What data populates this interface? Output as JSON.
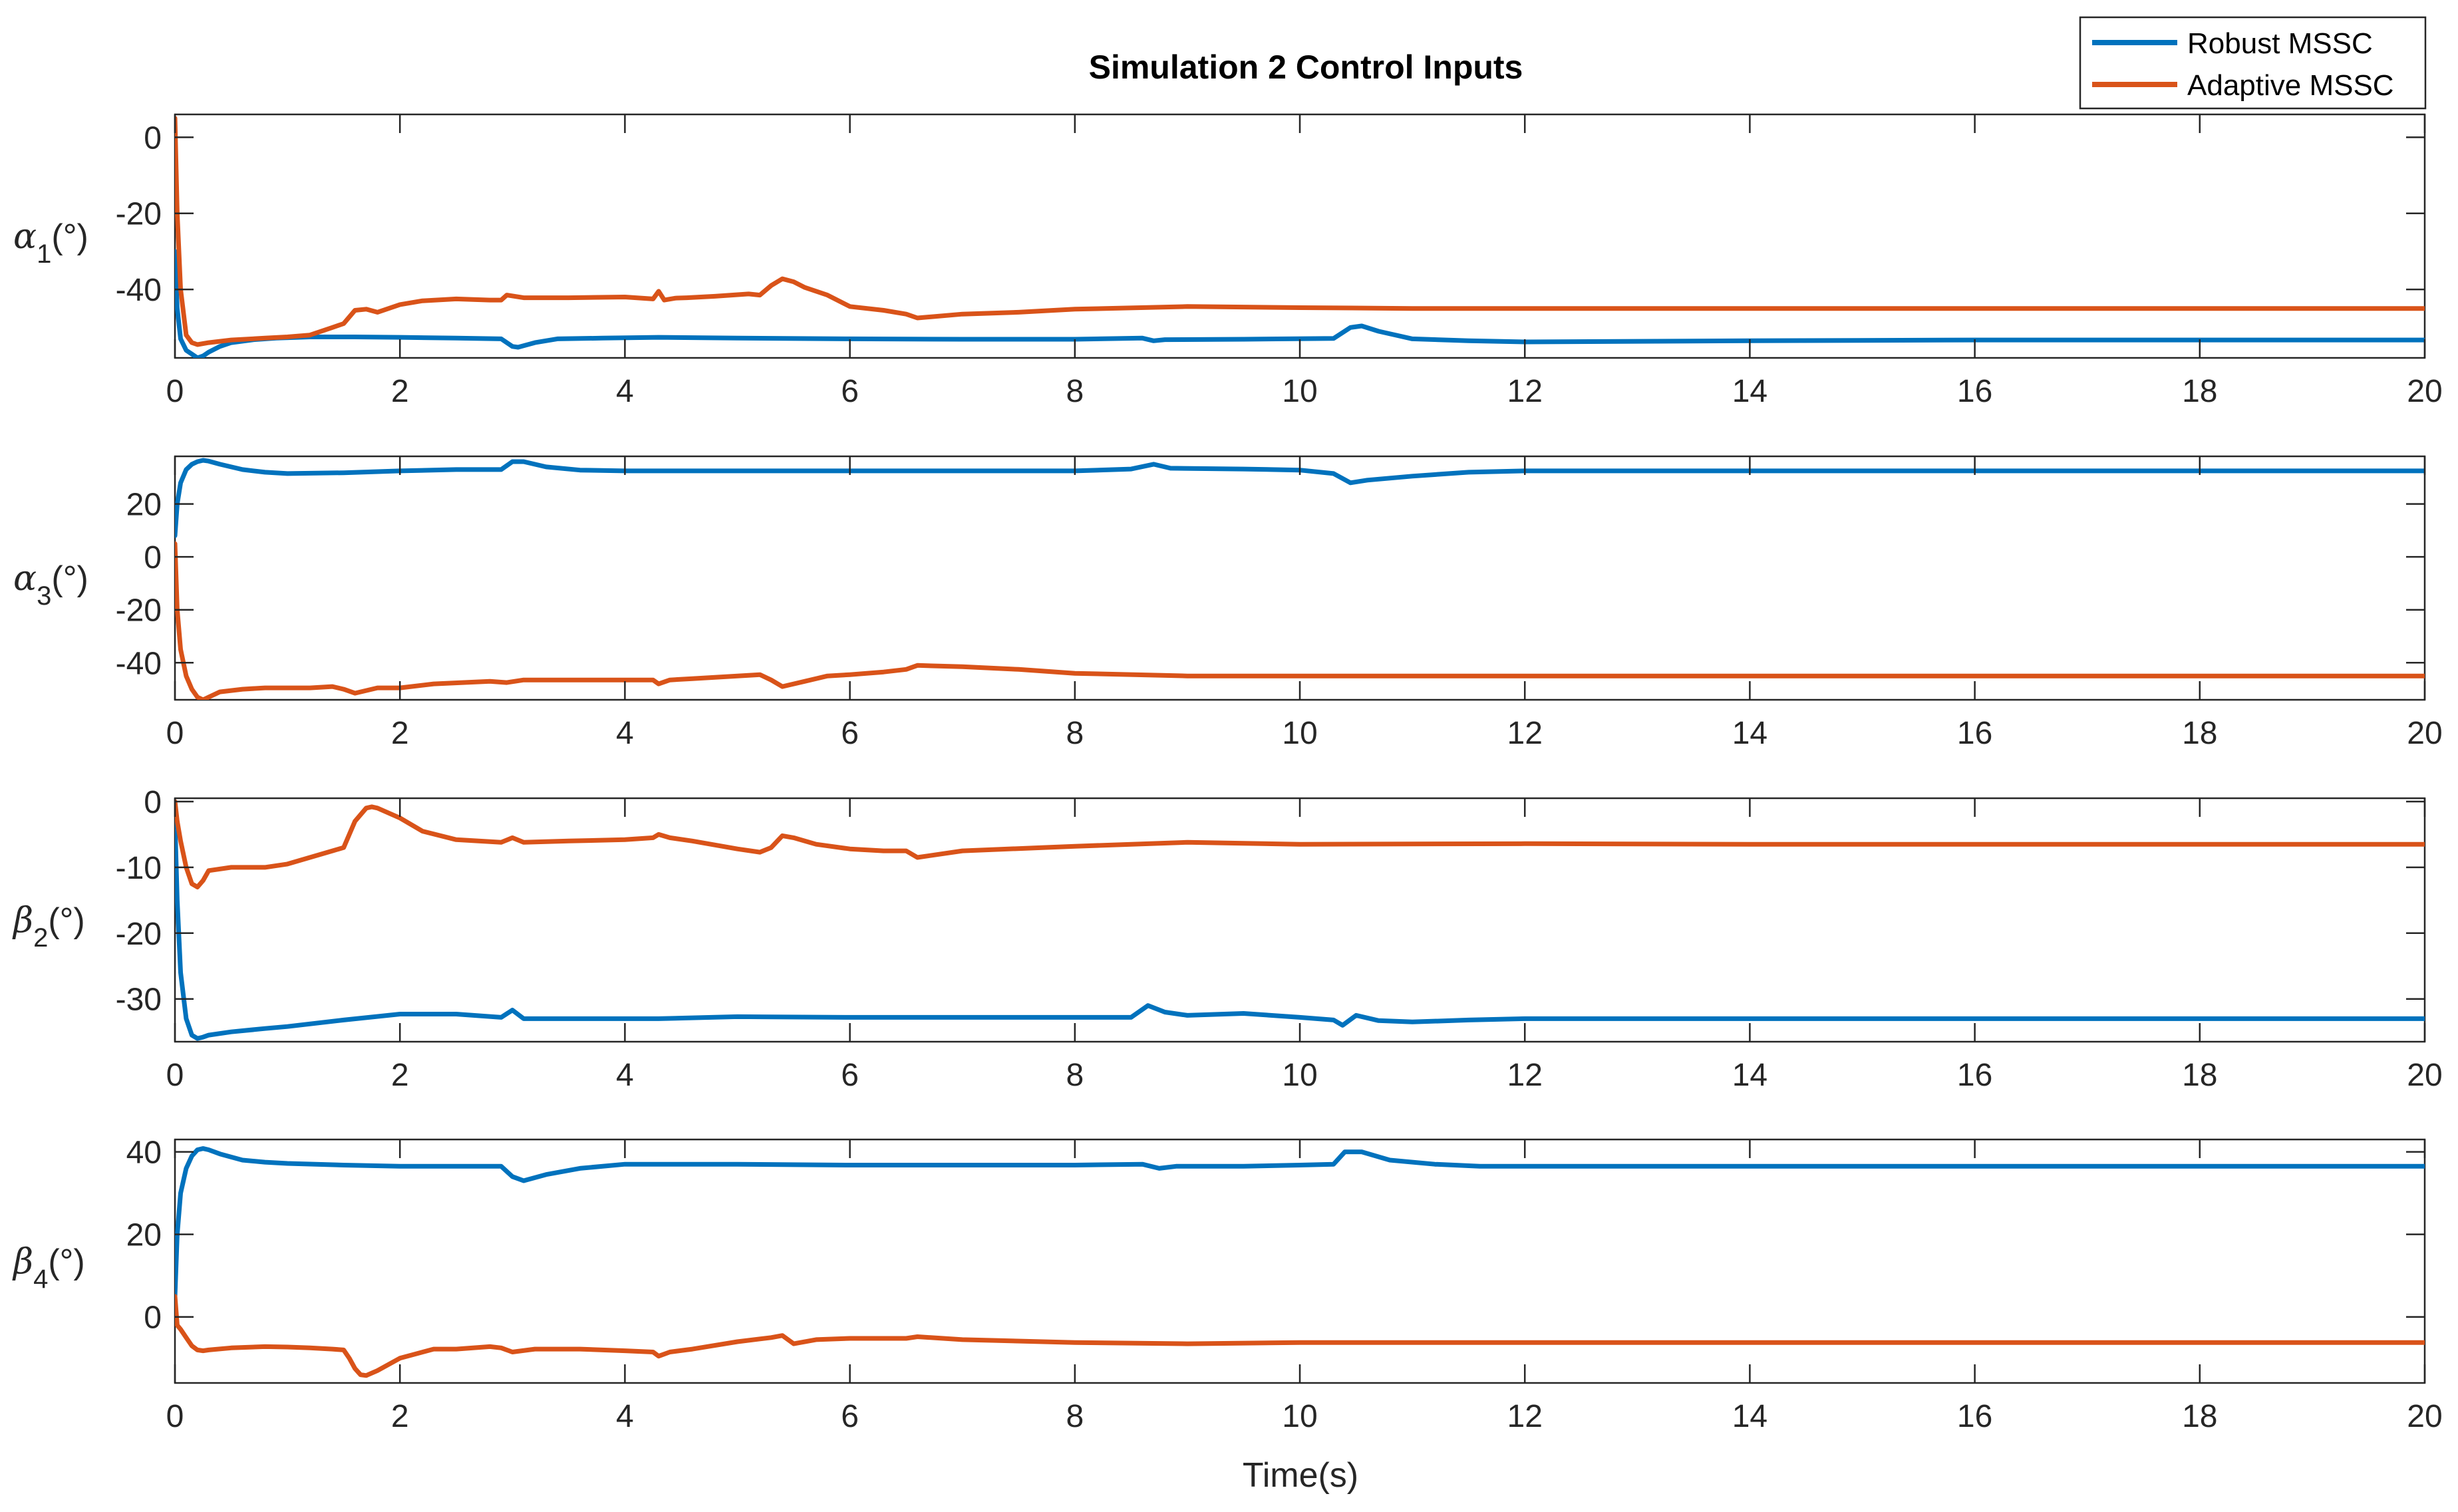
{
  "figure": {
    "title": "Simulation 2 Control Inputs",
    "xlabel": "Time(s)"
  },
  "legend": {
    "entries": [
      {
        "name": "Robust MSSC",
        "color": "#0072BD"
      },
      {
        "name": "Adaptive MSSC",
        "color": "#D95319"
      }
    ],
    "placement": "top-right"
  },
  "chart_data": [
    {
      "type": "line",
      "ylabel_symbol": "α",
      "ylabel_sub": "1",
      "ylabel_unit": "(°)",
      "xlim": [
        0,
        20
      ],
      "ylim": [
        -58,
        6
      ],
      "xticks": [
        0,
        2,
        4,
        6,
        8,
        10,
        12,
        14,
        16,
        18,
        20
      ],
      "yticks": [
        -40,
        -20,
        0
      ],
      "series": [
        {
          "name": "Robust MSSC",
          "x": [
            0,
            0.02,
            0.05,
            0.1,
            0.15,
            0.2,
            0.25,
            0.3,
            0.4,
            0.5,
            0.7,
            0.9,
            1.2,
            1.6,
            2.0,
            2.5,
            2.9,
            3.0,
            3.05,
            3.2,
            3.4,
            3.8,
            4.3,
            5.0,
            6.0,
            7.0,
            8.0,
            8.6,
            8.7,
            8.8,
            9.5,
            10.3,
            10.45,
            10.55,
            10.7,
            11.0,
            11.5,
            12.0,
            14.0,
            16.0,
            18.0,
            20.0
          ],
          "y": [
            -30,
            -45,
            -53,
            -56,
            -57,
            -58,
            -57.5,
            -56.5,
            -55,
            -54,
            -53.2,
            -52.8,
            -52.5,
            -52.5,
            -52.6,
            -52.8,
            -53,
            -55,
            -55.2,
            -54,
            -53,
            -52.8,
            -52.6,
            -52.8,
            -53,
            -53.1,
            -53.1,
            -52.8,
            -53.5,
            -53.2,
            -53.1,
            -52.9,
            -50,
            -49.6,
            -51,
            -53,
            -53.5,
            -53.8,
            -53.5,
            -53.3,
            -53.3,
            -53.3
          ]
        },
        {
          "name": "Adaptive MSSC",
          "x": [
            0,
            0.02,
            0.05,
            0.1,
            0.15,
            0.2,
            0.3,
            0.5,
            0.8,
            1.0,
            1.2,
            1.4,
            1.5,
            1.6,
            1.7,
            1.8,
            2.0,
            2.2,
            2.5,
            2.8,
            2.9,
            2.95,
            3.1,
            3.5,
            4.0,
            4.25,
            4.3,
            4.35,
            4.45,
            4.55,
            4.8,
            5.1,
            5.2,
            5.3,
            5.4,
            5.5,
            5.6,
            5.8,
            6.0,
            6.3,
            6.5,
            6.6,
            7.0,
            7.5,
            8.0,
            9.0,
            10.0,
            11.0,
            12.0,
            14.0,
            16.0,
            18.0,
            20.0
          ],
          "y": [
            5,
            -20,
            -40,
            -52,
            -54,
            -54.5,
            -54,
            -53.3,
            -52.8,
            -52.5,
            -52,
            -50,
            -49,
            -45.5,
            -45.2,
            -46,
            -44,
            -43,
            -42.5,
            -42.8,
            -42.8,
            -41.5,
            -42.2,
            -42.2,
            -42,
            -42.5,
            -40.5,
            -42.8,
            -42.3,
            -42.2,
            -41.8,
            -41.2,
            -41.5,
            -39,
            -37.2,
            -38,
            -39.5,
            -41.5,
            -44.5,
            -45.5,
            -46.5,
            -47.5,
            -46.5,
            -46,
            -45.2,
            -44.5,
            -44.8,
            -45,
            -45,
            -45,
            -45,
            -45,
            -45
          ]
        }
      ]
    },
    {
      "type": "line",
      "ylabel_symbol": "α",
      "ylabel_sub": "3",
      "ylabel_unit": "(°)",
      "xlim": [
        0,
        20
      ],
      "ylim": [
        -54,
        38
      ],
      "xticks": [
        0,
        2,
        4,
        6,
        8,
        10,
        12,
        14,
        16,
        18,
        20
      ],
      "yticks": [
        -40,
        -20,
        0,
        20
      ],
      "series": [
        {
          "name": "Robust MSSC",
          "x": [
            0,
            0.02,
            0.05,
            0.1,
            0.15,
            0.2,
            0.25,
            0.3,
            0.4,
            0.6,
            0.8,
            1.0,
            1.5,
            2.0,
            2.5,
            2.9,
            3.0,
            3.1,
            3.3,
            3.6,
            4.0,
            5.0,
            6.0,
            7.0,
            8.0,
            8.5,
            8.7,
            8.85,
            9.5,
            10.0,
            10.3,
            10.45,
            10.6,
            11.0,
            11.5,
            12.0,
            14.0,
            16.0,
            18.0,
            20.0
          ],
          "y": [
            8,
            20,
            28,
            33,
            35,
            36,
            36.5,
            36.2,
            35,
            33,
            32,
            31.5,
            31.8,
            32.5,
            33,
            33,
            36,
            36,
            34,
            32.8,
            32.5,
            32.5,
            32.5,
            32.5,
            32.5,
            33.2,
            35,
            33.5,
            33.2,
            32.8,
            31.5,
            28,
            29,
            30.5,
            32,
            32.5,
            32.5,
            32.5,
            32.5,
            32.5
          ]
        },
        {
          "name": "Adaptive MSSC",
          "x": [
            0,
            0.02,
            0.05,
            0.1,
            0.15,
            0.2,
            0.25,
            0.3,
            0.4,
            0.6,
            0.8,
            1.0,
            1.2,
            1.4,
            1.5,
            1.6,
            1.7,
            1.8,
            2.0,
            2.3,
            2.8,
            2.95,
            3.1,
            3.5,
            4.0,
            4.25,
            4.3,
            4.4,
            4.6,
            5.0,
            5.2,
            5.3,
            5.4,
            5.6,
            5.8,
            6.0,
            6.3,
            6.5,
            6.6,
            7.0,
            7.5,
            8.0,
            9.0,
            10.0,
            12.0,
            14.0,
            16.0,
            18.0,
            20.0
          ],
          "y": [
            5,
            -20,
            -35,
            -45,
            -50,
            -53,
            -54,
            -53,
            -51,
            -50,
            -49.5,
            -49.5,
            -49.5,
            -49,
            -50,
            -51.5,
            -50.5,
            -49.5,
            -49.5,
            -48,
            -47,
            -47.5,
            -46.5,
            -46.5,
            -46.5,
            -46.5,
            -48,
            -46.5,
            -46,
            -45,
            -44.5,
            -46.5,
            -49,
            -47,
            -45,
            -44.5,
            -43.5,
            -42.5,
            -41,
            -41.5,
            -42.5,
            -44,
            -45,
            -45,
            -45,
            -45,
            -45,
            -45,
            -45
          ]
        }
      ]
    },
    {
      "type": "line",
      "ylabel_symbol": "β",
      "ylabel_sub": "2",
      "ylabel_unit": "(°)",
      "xlim": [
        0,
        20
      ],
      "ylim": [
        -36.5,
        0.5
      ],
      "xticks": [
        0,
        2,
        4,
        6,
        8,
        10,
        12,
        14,
        16,
        18,
        20
      ],
      "yticks": [
        -30,
        -20,
        -10,
        0
      ],
      "series": [
        {
          "name": "Robust MSSC",
          "x": [
            0,
            0.02,
            0.05,
            0.1,
            0.15,
            0.2,
            0.25,
            0.3,
            0.5,
            0.8,
            1.0,
            1.5,
            2.0,
            2.5,
            2.9,
            3.0,
            3.1,
            3.3,
            3.8,
            4.3,
            5.0,
            6.0,
            7.0,
            8.0,
            8.5,
            8.65,
            8.8,
            9.0,
            9.5,
            10.0,
            10.3,
            10.38,
            10.5,
            10.7,
            11.0,
            11.5,
            12.0,
            14.0,
            16.0,
            18.0,
            20.0
          ],
          "y": [
            -3,
            -15,
            -26,
            -33,
            -35.5,
            -36,
            -35.8,
            -35.5,
            -35,
            -34.5,
            -34.2,
            -33.2,
            -32.3,
            -32.3,
            -32.8,
            -31.7,
            -33,
            -33,
            -33,
            -33,
            -32.7,
            -32.8,
            -32.8,
            -32.8,
            -32.8,
            -31,
            -32,
            -32.5,
            -32.2,
            -32.8,
            -33.2,
            -34,
            -32.5,
            -33.3,
            -33.5,
            -33.2,
            -33,
            -33,
            -33,
            -33,
            -33
          ]
        },
        {
          "name": "Adaptive MSSC",
          "x": [
            0,
            0.02,
            0.05,
            0.1,
            0.15,
            0.2,
            0.25,
            0.3,
            0.5,
            0.8,
            1.0,
            1.2,
            1.4,
            1.5,
            1.55,
            1.6,
            1.7,
            1.75,
            1.8,
            2.0,
            2.2,
            2.5,
            2.9,
            3.0,
            3.1,
            3.5,
            4.0,
            4.25,
            4.3,
            4.4,
            4.6,
            5.0,
            5.2,
            5.3,
            5.4,
            5.5,
            5.7,
            6.0,
            6.3,
            6.5,
            6.6,
            7.0,
            8.0,
            9.0,
            10.0,
            12.0,
            14.0,
            16.0,
            18.0,
            20.0
          ],
          "y": [
            0,
            -3,
            -6,
            -10,
            -12.5,
            -13,
            -12,
            -10.5,
            -10,
            -10,
            -9.5,
            -8.5,
            -7.5,
            -7,
            -5,
            -3,
            -1,
            -0.8,
            -1,
            -2.5,
            -4.5,
            -5.8,
            -6.2,
            -5.5,
            -6.2,
            -6,
            -5.8,
            -5.5,
            -5,
            -5.5,
            -6,
            -7.2,
            -7.7,
            -7,
            -5.2,
            -5.5,
            -6.5,
            -7.2,
            -7.5,
            -7.5,
            -8.5,
            -7.5,
            -6.8,
            -6.2,
            -6.5,
            -6.4,
            -6.5,
            -6.5,
            -6.5,
            -6.5
          ]
        }
      ]
    },
    {
      "type": "line",
      "ylabel_symbol": "β",
      "ylabel_sub": "4",
      "ylabel_unit": "(°)",
      "xlim": [
        0,
        20
      ],
      "ylim": [
        -16,
        43
      ],
      "xticks": [
        0,
        2,
        4,
        6,
        8,
        10,
        12,
        14,
        16,
        18,
        20
      ],
      "yticks": [
        0,
        20,
        40
      ],
      "series": [
        {
          "name": "Robust MSSC",
          "x": [
            0,
            0.02,
            0.05,
            0.1,
            0.15,
            0.2,
            0.25,
            0.3,
            0.4,
            0.6,
            0.8,
            1.0,
            1.5,
            2.0,
            2.5,
            2.9,
            3.0,
            3.1,
            3.3,
            3.6,
            4.0,
            5.0,
            6.0,
            7.0,
            8.0,
            8.6,
            8.75,
            8.9,
            9.5,
            10.0,
            10.3,
            10.4,
            10.55,
            10.8,
            11.2,
            11.6,
            12.0,
            14.0,
            16.0,
            18.0,
            20.0
          ],
          "y": [
            5,
            20,
            30,
            36,
            39,
            40.5,
            40.8,
            40.5,
            39.5,
            38,
            37.5,
            37.2,
            36.8,
            36.5,
            36.5,
            36.5,
            34,
            33,
            34.5,
            36,
            37,
            37,
            36.8,
            36.8,
            36.8,
            37,
            36,
            36.5,
            36.5,
            36.8,
            37,
            40,
            40,
            38,
            37,
            36.5,
            36.5,
            36.5,
            36.5,
            36.5,
            36.5
          ]
        },
        {
          "name": "Adaptive MSSC",
          "x": [
            0,
            0.02,
            0.05,
            0.1,
            0.15,
            0.2,
            0.25,
            0.3,
            0.5,
            0.8,
            1.0,
            1.2,
            1.4,
            1.5,
            1.55,
            1.6,
            1.65,
            1.7,
            1.8,
            2.0,
            2.3,
            2.5,
            2.8,
            2.9,
            3.0,
            3.2,
            3.6,
            4.0,
            4.25,
            4.3,
            4.4,
            4.6,
            5.0,
            5.3,
            5.4,
            5.5,
            5.7,
            6.0,
            6.5,
            6.6,
            7.0,
            8.0,
            9.0,
            10.0,
            12.0,
            14.0,
            16.0,
            18.0,
            20.0
          ],
          "y": [
            5,
            -2,
            -3,
            -5,
            -7,
            -8,
            -8.2,
            -8,
            -7.5,
            -7.2,
            -7.3,
            -7.5,
            -7.8,
            -8,
            -10,
            -12.5,
            -14,
            -14.2,
            -13,
            -10,
            -7.8,
            -7.8,
            -7.2,
            -7.5,
            -8.5,
            -7.8,
            -7.8,
            -8.2,
            -8.5,
            -9.5,
            -8.5,
            -7.8,
            -6,
            -5,
            -4.5,
            -6.5,
            -5.5,
            -5.2,
            -5.2,
            -4.8,
            -5.5,
            -6.2,
            -6.5,
            -6.2,
            -6.2,
            -6.2,
            -6.2,
            -6.2,
            -6.2
          ]
        }
      ]
    }
  ]
}
